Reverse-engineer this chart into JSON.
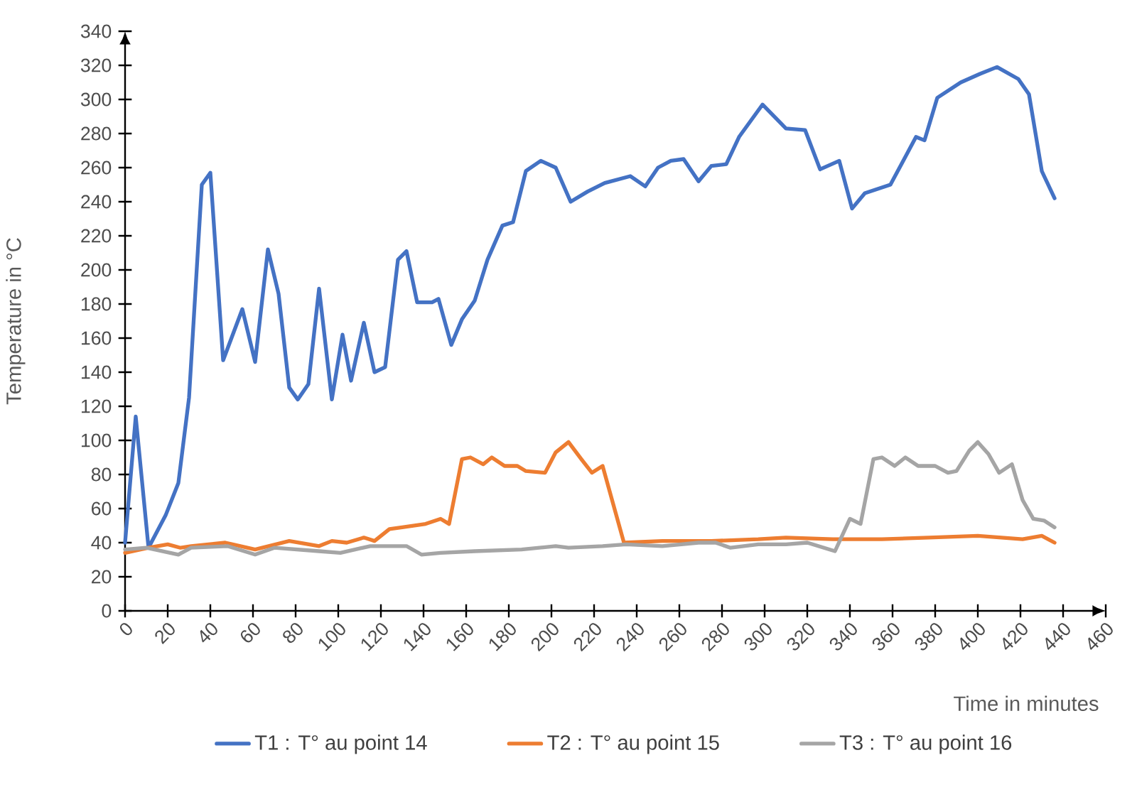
{
  "chart_data": {
    "type": "line",
    "xlabel": "Time in minutes",
    "ylabel": "Temperature in °C",
    "xlim": [
      0,
      460
    ],
    "ylim": [
      0,
      340
    ],
    "xticks": [
      0,
      20,
      40,
      60,
      80,
      100,
      120,
      140,
      160,
      180,
      200,
      220,
      240,
      260,
      280,
      300,
      320,
      340,
      360,
      380,
      400,
      420,
      440,
      460
    ],
    "yticks": [
      0,
      20,
      40,
      60,
      80,
      100,
      120,
      140,
      160,
      180,
      200,
      220,
      240,
      260,
      280,
      300,
      320,
      340
    ],
    "legend": "bottom",
    "marker": "none",
    "line_style": "solid",
    "series": [
      {
        "name": "T1 : T° au point 14",
        "color": "#4472c4",
        "x": [
          0,
          5,
          11,
          19,
          25,
          30,
          36,
          40,
          46,
          55,
          61,
          67,
          72,
          77,
          81,
          86,
          91,
          97,
          102,
          106,
          112,
          117,
          122,
          128,
          132,
          137,
          144,
          147,
          153,
          158,
          164,
          170,
          177,
          182,
          188,
          195,
          202,
          209,
          217,
          225,
          237,
          244,
          250,
          256,
          262,
          269,
          275,
          282,
          288,
          299,
          310,
          319,
          326,
          335,
          341,
          347,
          359,
          371,
          375,
          381,
          392,
          401,
          409,
          419,
          424,
          430,
          436
        ],
        "values": [
          40,
          114,
          37,
          56,
          75,
          125,
          250,
          257,
          147,
          177,
          146,
          212,
          186,
          131,
          124,
          133,
          189,
          124,
          162,
          135,
          169,
          140,
          143,
          206,
          211,
          181,
          181,
          183,
          156,
          171,
          182,
          206,
          226,
          228,
          258,
          264,
          260,
          240,
          246,
          251,
          255,
          249,
          260,
          264,
          265,
          252,
          261,
          262,
          278,
          297,
          283,
          282,
          259,
          264,
          236,
          245,
          250,
          278,
          276,
          301,
          310,
          315,
          319,
          312,
          303,
          258,
          242
        ]
      },
      {
        "name": "T2 : T° au point 15",
        "color": "#ed7d31",
        "x": [
          0,
          11,
          20,
          26,
          31,
          47,
          61,
          77,
          91,
          97,
          104,
          112,
          117,
          124,
          130,
          141,
          148,
          152,
          158,
          162,
          168,
          172,
          178,
          184,
          188,
          197,
          202,
          208,
          214,
          219,
          224,
          228,
          234,
          252,
          275,
          297,
          310,
          332,
          355,
          377,
          400,
          421,
          430,
          436
        ],
        "values": [
          34,
          37,
          39,
          37,
          38,
          40,
          36,
          41,
          38,
          41,
          40,
          43,
          41,
          48,
          49,
          51,
          54,
          51,
          89,
          90,
          86,
          90,
          85,
          85,
          82,
          81,
          93,
          99,
          89,
          81,
          85,
          67,
          40,
          41,
          41,
          42,
          43,
          42,
          42,
          43,
          44,
          42,
          44,
          40
        ]
      },
      {
        "name": "T3 : T° au point 16",
        "color": "#a5a5a5",
        "x": [
          0,
          10,
          25,
          31,
          48,
          61,
          70,
          91,
          101,
          115,
          132,
          139,
          148,
          164,
          186,
          202,
          208,
          224,
          235,
          252,
          269,
          277,
          284,
          297,
          310,
          320,
          333,
          340,
          345,
          351,
          355,
          361,
          366,
          372,
          380,
          386,
          390,
          396,
          400,
          405,
          410,
          416,
          421,
          426,
          431,
          436
        ],
        "values": [
          36,
          37,
          33,
          37,
          38,
          33,
          37,
          35,
          34,
          38,
          38,
          33,
          34,
          35,
          36,
          38,
          37,
          38,
          39,
          38,
          40,
          40,
          37,
          39,
          39,
          40,
          35,
          54,
          51,
          89,
          90,
          85,
          90,
          85,
          85,
          81,
          82,
          94,
          99,
          92,
          81,
          86,
          65,
          54,
          53,
          49
        ]
      }
    ]
  }
}
